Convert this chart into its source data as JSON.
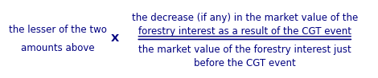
{
  "left_line1": "the lesser of the two",
  "left_line2": "amounts above",
  "multiply_symbol": "X",
  "numerator_line1": "the decrease (if any) in the market value of the",
  "numerator_line2": "forestry interest as a result of the CGT event",
  "denominator_line1": "the market value of the forestry interest just",
  "denominator_line2": "before the CGT event",
  "text_color": "#000080",
  "bg_color": "#ffffff",
  "fontsize": 8.5,
  "fig_width": 4.7,
  "fig_height": 0.98
}
